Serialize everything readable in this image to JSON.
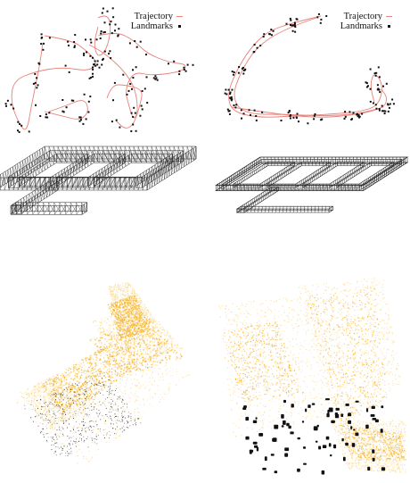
{
  "colors": {
    "trajectory": "#e8827a",
    "landmark": "#111111",
    "wire": "#222222",
    "cloud": "#f7b52f",
    "cloud_light": "#fbd98c",
    "cloud_points_dark": "#111111"
  },
  "panels": [
    {
      "id": "a",
      "kind": "trajectory-landmarks",
      "legend": {
        "trajectory": "Trajectory",
        "landmarks": "Landmarks"
      }
    },
    {
      "id": "b",
      "kind": "trajectory-landmarks",
      "legend": {
        "trajectory": "Trajectory",
        "landmarks": "Landmarks"
      }
    },
    {
      "id": "c",
      "kind": "wireframe-building"
    },
    {
      "id": "d",
      "kind": "wireframe-building"
    },
    {
      "id": "e",
      "kind": "point-cloud-square"
    },
    {
      "id": "f",
      "kind": "point-cloud-street"
    }
  ]
}
